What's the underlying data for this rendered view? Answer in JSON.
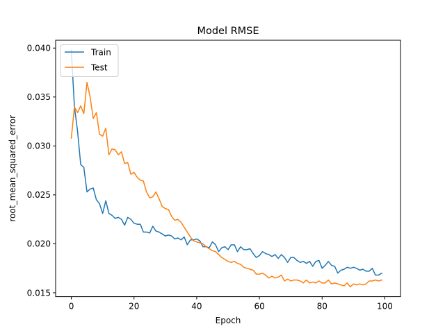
{
  "chart_data": {
    "type": "line",
    "title": "Model RMSE",
    "xlabel": "Epoch",
    "ylabel": "root_mean_squared_error",
    "xlim": [
      -5,
      105
    ],
    "ylim": [
      0.0146,
      0.0408
    ],
    "xticks": [
      0,
      20,
      40,
      60,
      80,
      100
    ],
    "yticks": [
      0.015,
      0.02,
      0.025,
      0.03,
      0.035,
      0.04
    ],
    "ytick_labels": [
      "0.015",
      "0.020",
      "0.025",
      "0.030",
      "0.035",
      "0.040"
    ],
    "grid": false,
    "legend": {
      "position": "upper left"
    },
    "colors": {
      "Train": "#1f77b4",
      "Test": "#ff7f0e"
    },
    "series": [
      {
        "name": "Train",
        "x": [
          0,
          1,
          2,
          3,
          4,
          5,
          6,
          7,
          8,
          9,
          10,
          11,
          12,
          13,
          14,
          15,
          16,
          17,
          18,
          19,
          20,
          21,
          22,
          23,
          24,
          25,
          26,
          27,
          28,
          29,
          30,
          31,
          32,
          33,
          34,
          35,
          36,
          37,
          38,
          39,
          40,
          41,
          42,
          43,
          44,
          45,
          46,
          47,
          48,
          49,
          50,
          51,
          52,
          53,
          54,
          55,
          56,
          57,
          58,
          59,
          60,
          61,
          62,
          63,
          64,
          65,
          66,
          67,
          68,
          69,
          70,
          71,
          72,
          73,
          74,
          75,
          76,
          77,
          78,
          79,
          80,
          81,
          82,
          83,
          84,
          85,
          86,
          87,
          88,
          89,
          90,
          91,
          92,
          93,
          94,
          95,
          96,
          97,
          98,
          99
        ],
        "values": [
          0.0398,
          0.034,
          0.0315,
          0.0281,
          0.0278,
          0.0253,
          0.0256,
          0.0257,
          0.0245,
          0.0241,
          0.0231,
          0.0244,
          0.0231,
          0.0229,
          0.0226,
          0.0227,
          0.0225,
          0.0219,
          0.0227,
          0.0225,
          0.0221,
          0.022,
          0.022,
          0.0212,
          0.0212,
          0.0211,
          0.0218,
          0.0213,
          0.0212,
          0.021,
          0.0208,
          0.0209,
          0.0208,
          0.0205,
          0.0206,
          0.0204,
          0.0207,
          0.0199,
          0.0204,
          0.0204,
          0.0205,
          0.0203,
          0.0197,
          0.0197,
          0.0196,
          0.0202,
          0.0199,
          0.0192,
          0.0196,
          0.0197,
          0.0194,
          0.0199,
          0.0199,
          0.0192,
          0.0197,
          0.0194,
          0.0194,
          0.0195,
          0.019,
          0.0186,
          0.0188,
          0.0192,
          0.019,
          0.0189,
          0.0187,
          0.0189,
          0.0185,
          0.0189,
          0.0186,
          0.0181,
          0.0186,
          0.0186,
          0.0183,
          0.0181,
          0.0182,
          0.018,
          0.0182,
          0.0177,
          0.0182,
          0.0183,
          0.0175,
          0.0178,
          0.0182,
          0.0178,
          0.0177,
          0.017,
          0.0173,
          0.0174,
          0.0176,
          0.0175,
          0.0176,
          0.0175,
          0.0173,
          0.0174,
          0.0172,
          0.0172,
          0.0175,
          0.0168,
          0.0168,
          0.017
        ]
      },
      {
        "name": "Test",
        "x": [
          0,
          1,
          2,
          3,
          4,
          5,
          6,
          7,
          8,
          9,
          10,
          11,
          12,
          13,
          14,
          15,
          16,
          17,
          18,
          19,
          20,
          21,
          22,
          23,
          24,
          25,
          26,
          27,
          28,
          29,
          30,
          31,
          32,
          33,
          34,
          35,
          36,
          37,
          38,
          39,
          40,
          41,
          42,
          43,
          44,
          45,
          46,
          47,
          48,
          49,
          50,
          51,
          52,
          53,
          54,
          55,
          56,
          57,
          58,
          59,
          60,
          61,
          62,
          63,
          64,
          65,
          66,
          67,
          68,
          69,
          70,
          71,
          72,
          73,
          74,
          75,
          76,
          77,
          78,
          79,
          80,
          81,
          82,
          83,
          84,
          85,
          86,
          87,
          88,
          89,
          90,
          91,
          92,
          93,
          94,
          95,
          96,
          97,
          98,
          99
        ],
        "values": [
          0.0308,
          0.034,
          0.0334,
          0.0341,
          0.0333,
          0.0365,
          0.035,
          0.0328,
          0.0334,
          0.0312,
          0.031,
          0.0318,
          0.0291,
          0.0297,
          0.0296,
          0.0291,
          0.0294,
          0.0282,
          0.0283,
          0.0271,
          0.0273,
          0.0268,
          0.0265,
          0.0264,
          0.0253,
          0.0247,
          0.0248,
          0.0253,
          0.0246,
          0.0238,
          0.0236,
          0.0235,
          0.0228,
          0.0224,
          0.0225,
          0.0222,
          0.0217,
          0.0212,
          0.0207,
          0.0203,
          0.0202,
          0.0201,
          0.02,
          0.0197,
          0.0195,
          0.0193,
          0.0192,
          0.0189,
          0.0186,
          0.0184,
          0.0182,
          0.0181,
          0.0182,
          0.018,
          0.0179,
          0.0176,
          0.0175,
          0.0174,
          0.0173,
          0.0169,
          0.0169,
          0.017,
          0.0168,
          0.0165,
          0.0167,
          0.0165,
          0.0166,
          0.0168,
          0.0162,
          0.0164,
          0.0162,
          0.0163,
          0.0163,
          0.0162,
          0.016,
          0.0163,
          0.016,
          0.0161,
          0.016,
          0.0162,
          0.016,
          0.016,
          0.0163,
          0.0159,
          0.016,
          0.0159,
          0.0158,
          0.0157,
          0.016,
          0.0156,
          0.0159,
          0.0158,
          0.0159,
          0.0158,
          0.0159,
          0.0162,
          0.0162,
          0.0163,
          0.0162,
          0.0163
        ]
      }
    ]
  }
}
